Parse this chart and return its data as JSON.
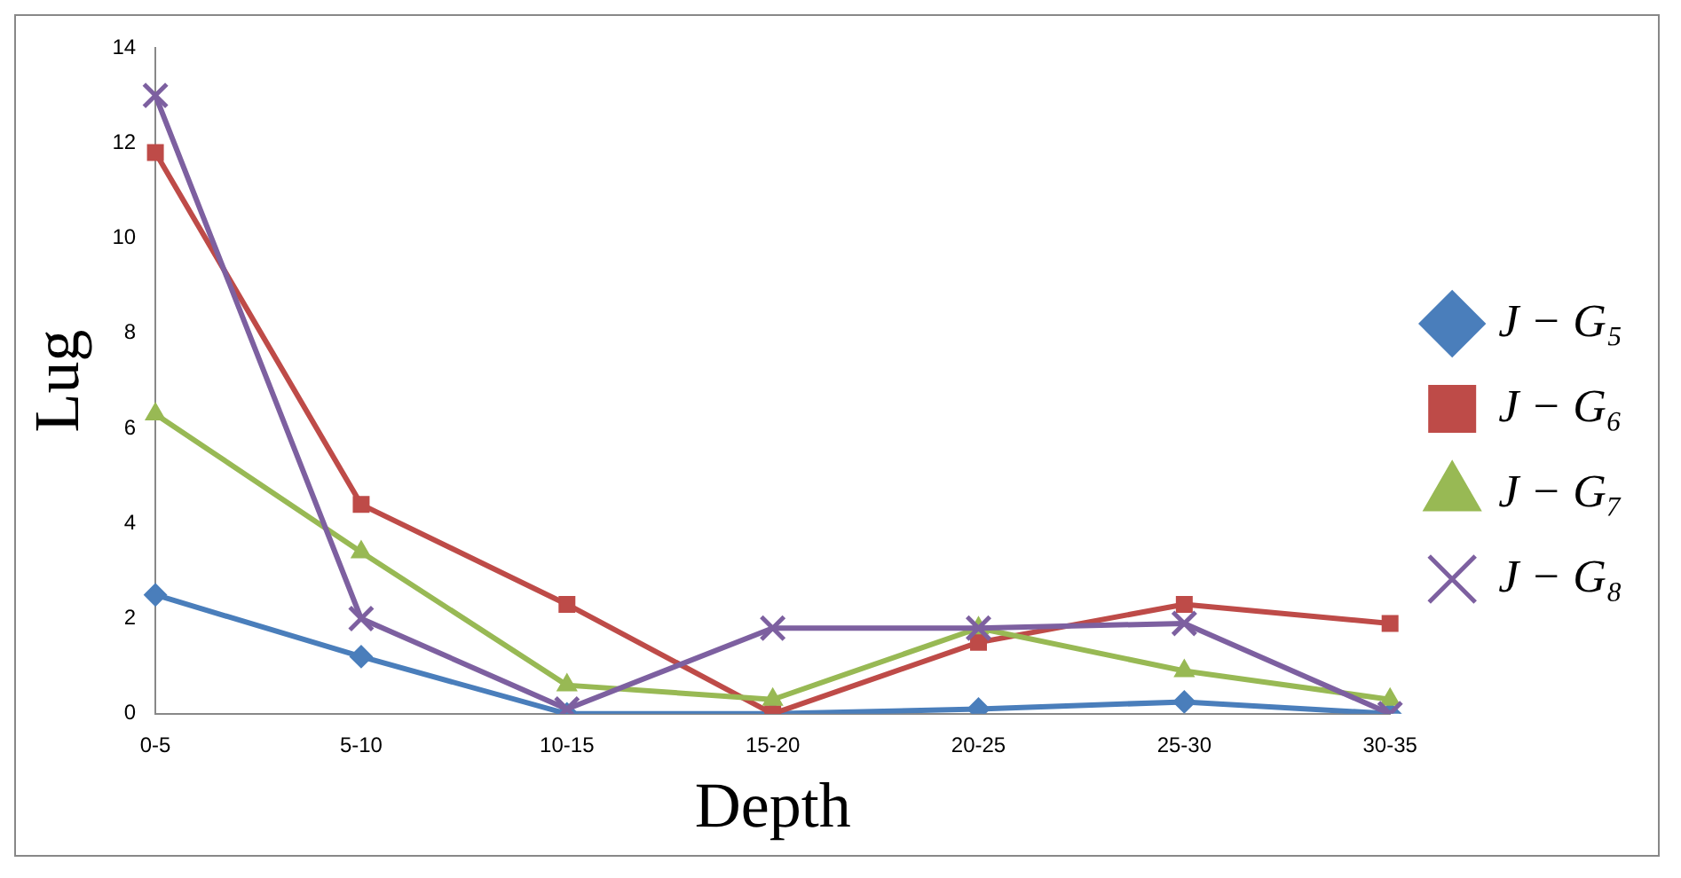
{
  "chart_data": {
    "type": "line",
    "xlabel": "Depth",
    "ylabel": "Lug",
    "categories": [
      "0-5",
      "5-10",
      "10-15",
      "15-20",
      "20-25",
      "25-30",
      "30-35"
    ],
    "ylim": [
      0,
      14
    ],
    "yticks": [
      0,
      2,
      4,
      6,
      8,
      10,
      12,
      14
    ],
    "grid": false,
    "legend": "right",
    "series": [
      {
        "name": "J − G₅",
        "color": "#4a7ebb",
        "marker": "diamond",
        "values": [
          2.5,
          1.2,
          0,
          0,
          0.1,
          0.25,
          0
        ]
      },
      {
        "name": "J − G₆",
        "color": "#be4b48",
        "marker": "square",
        "values": [
          11.8,
          4.4,
          2.3,
          0,
          1.5,
          2.3,
          1.9
        ]
      },
      {
        "name": "J − G₇",
        "color": "#98b954",
        "marker": "triangle",
        "values": [
          6.3,
          3.4,
          0.6,
          0.3,
          1.8,
          0.9,
          0.3
        ]
      },
      {
        "name": "J − G₈",
        "color": "#7d60a0",
        "marker": "cross",
        "values": [
          13,
          2,
          0.1,
          1.8,
          1.8,
          1.9,
          0
        ]
      }
    ]
  }
}
